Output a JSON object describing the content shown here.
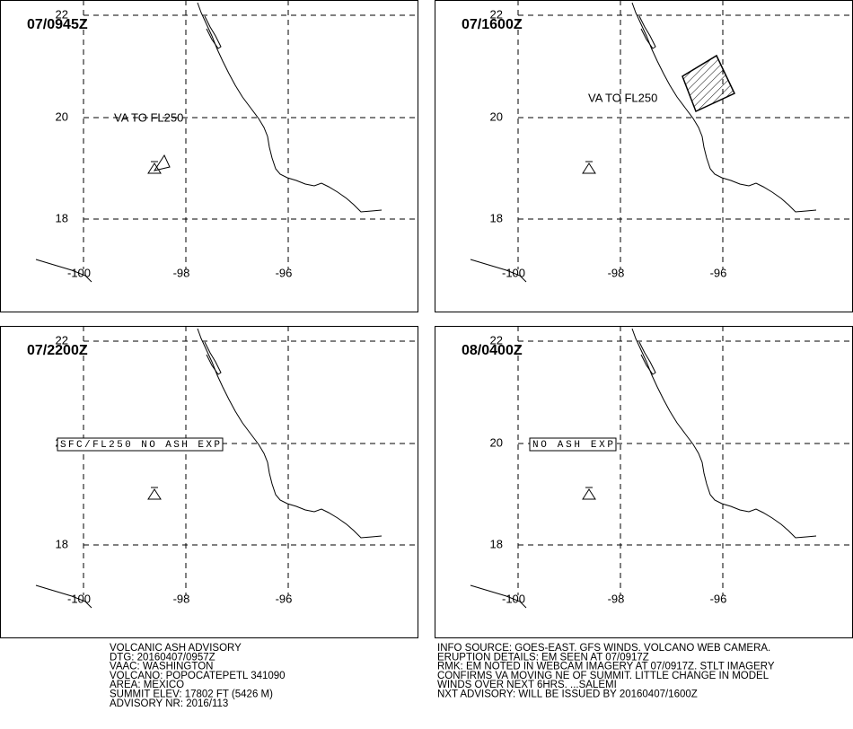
{
  "panels": [
    {
      "time": "07/0945Z",
      "label": "VA TO FL250"
    },
    {
      "time": "07/1600Z",
      "label": "VA TO FL250"
    },
    {
      "time": "07/2200Z",
      "label": "SFC/FL250 NO ASH EXP"
    },
    {
      "time": "08/0400Z",
      "label": "NO ASH EXP"
    }
  ],
  "lat_labels": [
    "22",
    "20",
    "18"
  ],
  "lon_labels": [
    "-100",
    "-98",
    "-96"
  ],
  "advisory": {
    "left": [
      "VOLCANIC ASH ADVISORY",
      "DTG: 20160407/0957Z",
      "VAAC: WASHINGTON",
      "VOLCANO: POPOCATEPETL 341090",
      "AREA: MEXICO",
      "SUMMIT ELEV: 17802 FT (5426 M)",
      "ADVISORY NR: 2016/113"
    ],
    "right": [
      "INFO SOURCE: GOES-EAST. GFS WINDS. VOLCANO WEB CAMERA.",
      "ERUPTION DETAILS: EM SEEN AT 07/0917Z",
      "RMK: EM NOTED IN WEBCAM IMAGERY AT 07/0917Z. STLT IMAGERY",
      "CONFIRMS VA MOVING NE OF SUMMIT. LITTLE CHANGE IN MODEL",
      "WINDS OVER NEXT 6HRS. ...SALEMI",
      "NXT ADVISORY: WILL BE ISSUED BY 20160407/1600Z"
    ]
  }
}
